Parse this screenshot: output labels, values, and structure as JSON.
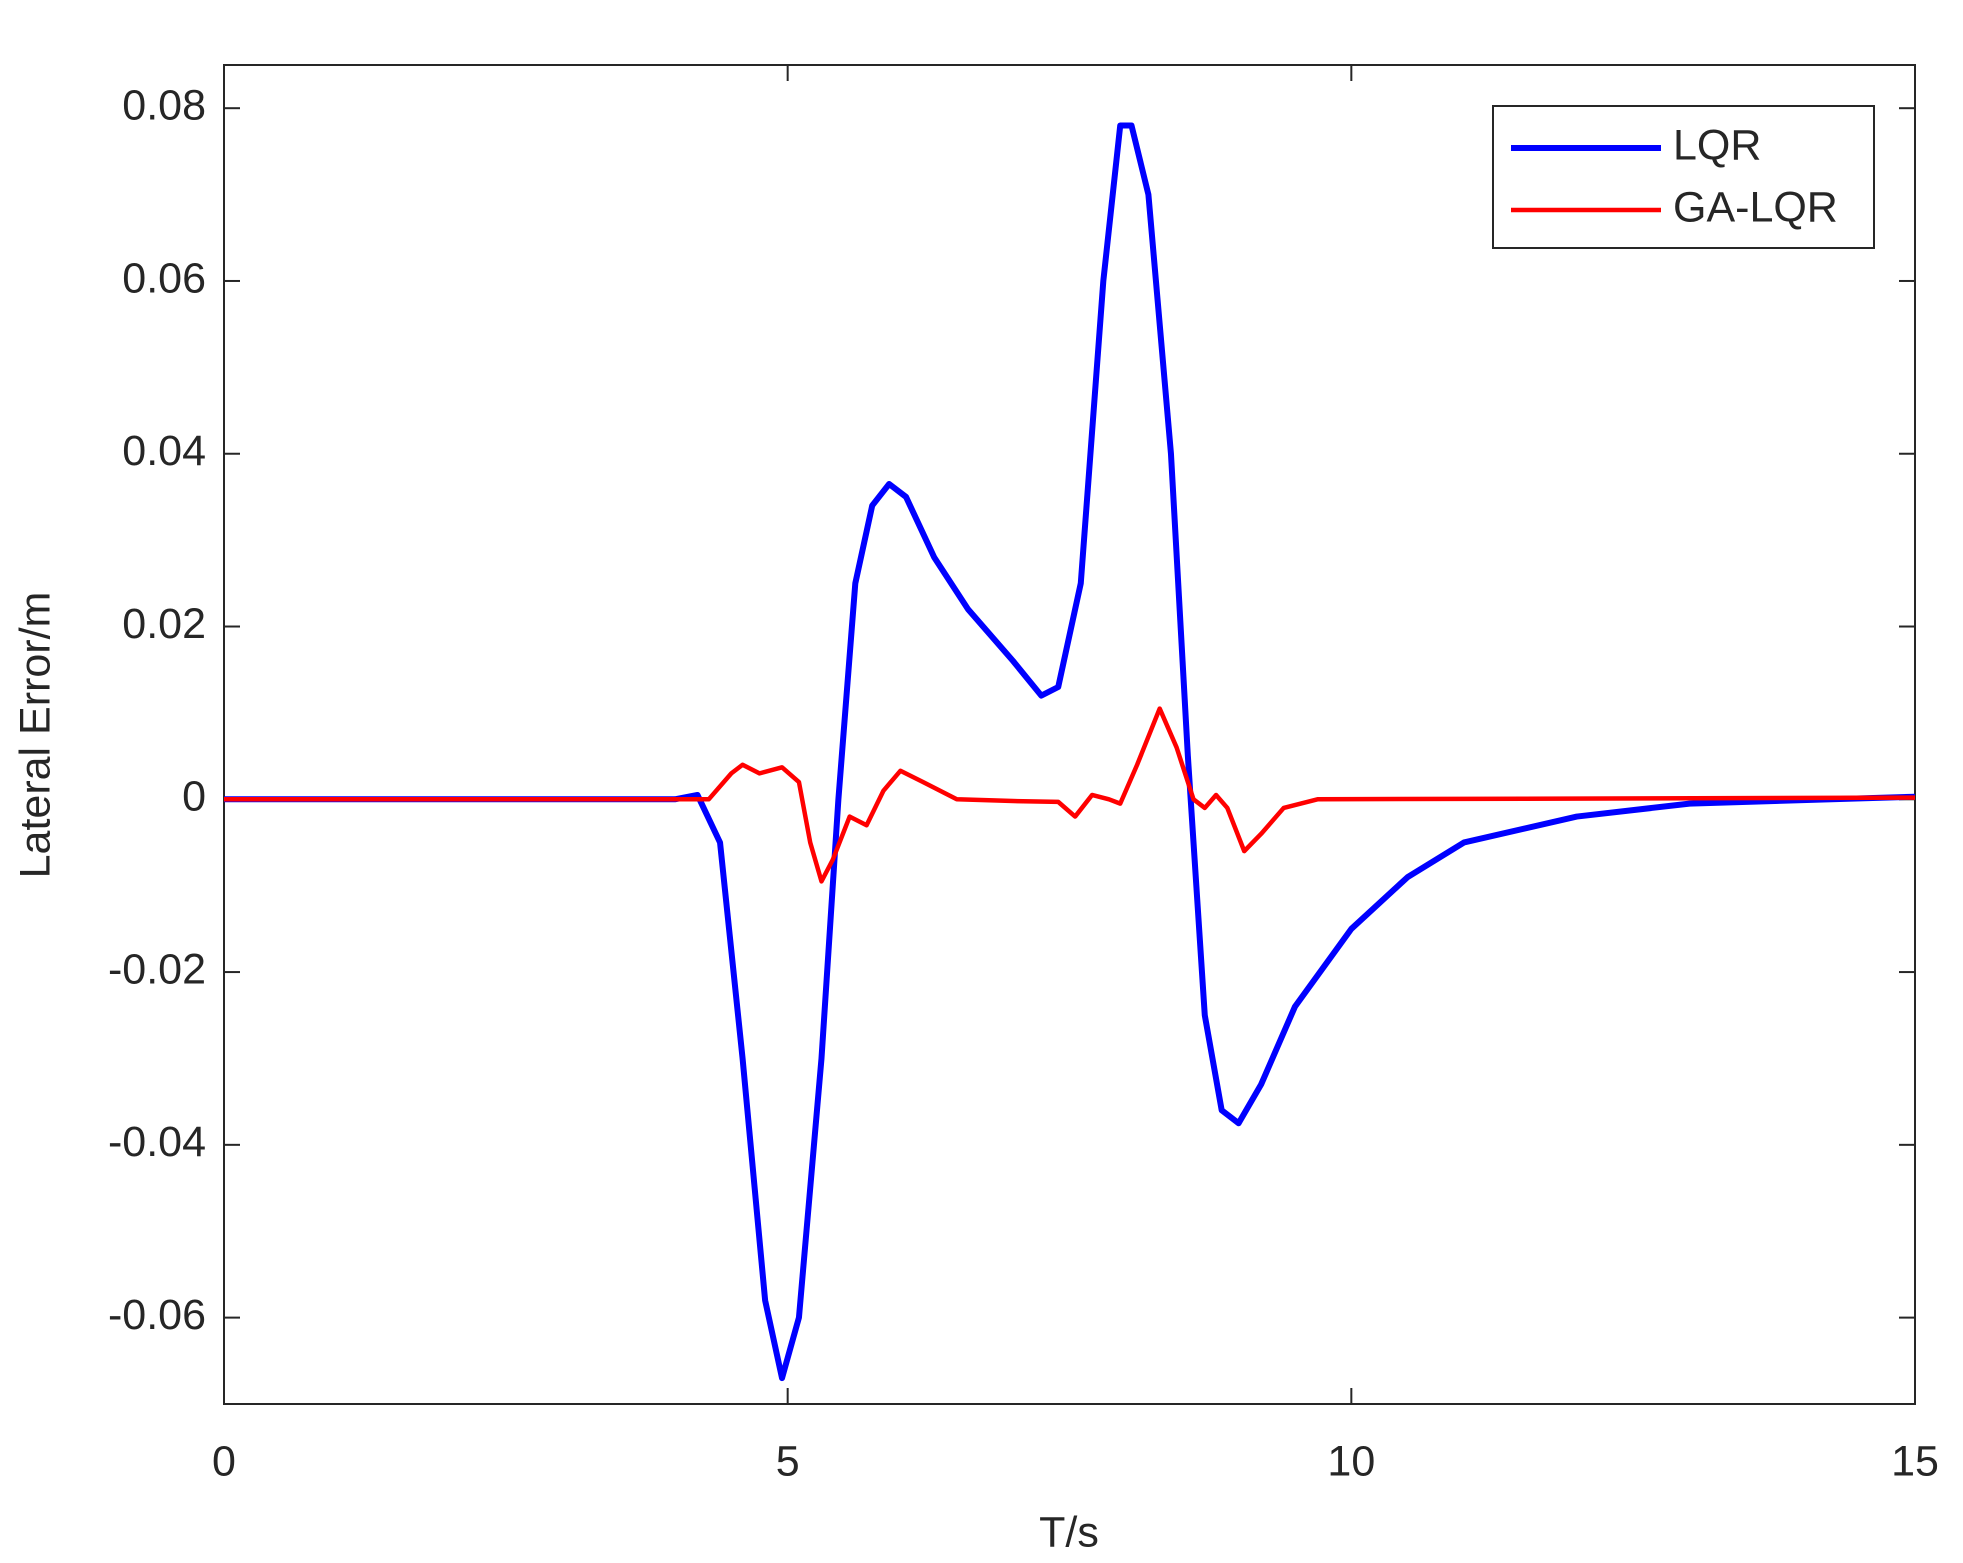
{
  "chart_data": {
    "type": "line",
    "xlabel": "T/s",
    "ylabel": "Lateral Error/m",
    "xlim": [
      0,
      15
    ],
    "ylim": [
      -0.07,
      0.085
    ],
    "xticks": [
      0,
      5,
      10,
      15
    ],
    "yticks": [
      -0.06,
      -0.04,
      -0.02,
      0,
      0.02,
      0.04,
      0.06,
      0.08
    ],
    "grid": false,
    "legend": "upper right",
    "series": [
      {
        "name": "LQR",
        "color": "#0000ff",
        "x": [
          0,
          2,
          4,
          4.2,
          4.4,
          4.6,
          4.8,
          4.95,
          5.1,
          5.3,
          5.45,
          5.6,
          5.75,
          5.9,
          6.05,
          6.3,
          6.6,
          7.0,
          7.25,
          7.4,
          7.6,
          7.8,
          7.95,
          8.05,
          8.2,
          8.4,
          8.55,
          8.7,
          8.85,
          9.0,
          9.2,
          9.5,
          10,
          10.5,
          11,
          12,
          13,
          15
        ],
        "values": [
          0,
          0,
          0,
          0.0005,
          -0.005,
          -0.03,
          -0.058,
          -0.067,
          -0.06,
          -0.03,
          0,
          0.025,
          0.034,
          0.0365,
          0.035,
          0.028,
          0.022,
          0.016,
          0.012,
          0.013,
          0.025,
          0.06,
          0.078,
          0.078,
          0.07,
          0.04,
          0.005,
          -0.025,
          -0.036,
          -0.0375,
          -0.033,
          -0.024,
          -0.015,
          -0.009,
          -0.005,
          -0.002,
          -0.0005,
          0.0003
        ]
      },
      {
        "name": "GA-LQR",
        "color": "#ff0000",
        "x": [
          0,
          2,
          4.3,
          4.5,
          4.6,
          4.75,
          4.95,
          5.1,
          5.2,
          5.3,
          5.4,
          5.55,
          5.7,
          5.85,
          6.0,
          6.2,
          6.5,
          7.0,
          7.4,
          7.55,
          7.7,
          7.85,
          7.95,
          8.1,
          8.3,
          8.45,
          8.6,
          8.7,
          8.8,
          8.9,
          9.05,
          9.2,
          9.4,
          9.7,
          15
        ],
        "values": [
          0,
          0,
          0,
          0.003,
          0.004,
          0.003,
          0.0037,
          0.002,
          -0.005,
          -0.0095,
          -0.007,
          -0.002,
          -0.003,
          0.001,
          0.0033,
          0.002,
          0,
          -0.0002,
          -0.0003,
          -0.002,
          0.0005,
          0,
          -0.0005,
          0.004,
          0.0105,
          0.006,
          0,
          -0.001,
          0.0005,
          -0.001,
          -0.006,
          -0.004,
          -0.001,
          0,
          0.0002
        ]
      }
    ]
  }
}
